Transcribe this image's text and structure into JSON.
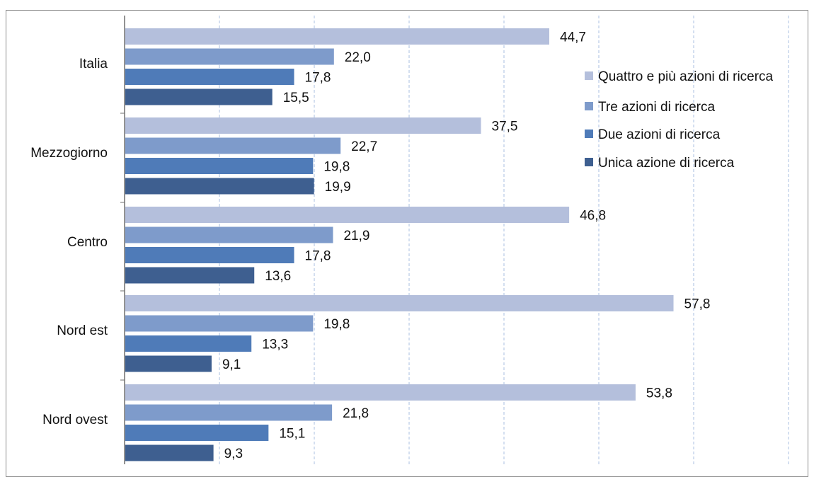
{
  "chart_data": {
    "type": "bar",
    "orientation": "horizontal",
    "categories": [
      "Italia",
      "Mezzogiorno",
      "Centro",
      "Nord est",
      "Nord ovest"
    ],
    "series": [
      {
        "name": "Quattro e più azioni di ricerca",
        "color": "#b4bfdc",
        "values": [
          44.7,
          37.5,
          46.8,
          57.8,
          53.8
        ],
        "labels": [
          "44,7",
          "37,5",
          "46,8",
          "57,8",
          "53,8"
        ]
      },
      {
        "name": "Tre azioni di ricerca",
        "color": "#7e9bcb",
        "values": [
          22.0,
          22.7,
          21.9,
          19.8,
          21.8
        ],
        "labels": [
          "22,0",
          "22,7",
          "21,9",
          "19,8",
          "21,8"
        ]
      },
      {
        "name": "Due azioni di ricerca",
        "color": "#4f7bb8",
        "values": [
          17.8,
          19.8,
          17.8,
          13.3,
          15.1
        ],
        "labels": [
          "17,8",
          "19,8",
          "17,8",
          "13,3",
          "15,1"
        ]
      },
      {
        "name": "Unica azione di ricerca",
        "color": "#3e5f90",
        "values": [
          15.5,
          19.9,
          13.6,
          9.1,
          9.3
        ],
        "labels": [
          "15,5",
          "19,9",
          "13,6",
          "9,1",
          "9,3"
        ]
      }
    ],
    "xlim": [
      0,
      70
    ],
    "grid": true,
    "legend_position": "top-right"
  }
}
